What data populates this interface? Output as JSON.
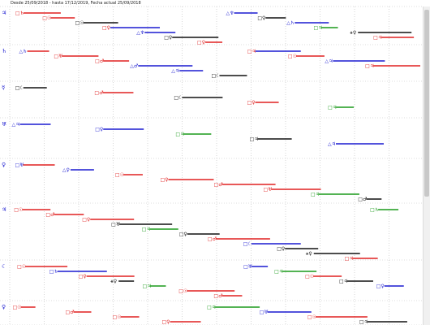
{
  "header": {
    "range_text": "Desde 25/09/2018 - hasta 17/12/2019, Fecha actual 25/09/2018"
  },
  "colors": {
    "red": "#e02020",
    "green": "#1a9a1a",
    "blue": "#1a1ad0",
    "black": "#111111",
    "grid": "#bbbbbb"
  },
  "rows": [
    {
      "label": "♃",
      "events": [
        {
          "t": "□♄",
          "c": "red",
          "b": "red"
        },
        {
          "t": "□☉",
          "c": "red",
          "b": "red"
        },
        {
          "t": "□☉",
          "c": "black",
          "b": "black"
        },
        {
          "t": "□♀",
          "c": "red",
          "b": "blue"
        },
        {
          "t": "△♆",
          "c": "blue",
          "b": "blue"
        },
        {
          "t": "□♀",
          "c": "black",
          "b": "black"
        },
        {
          "t": "□♀",
          "c": "red",
          "b": "red"
        },
        {
          "t": "△♆",
          "c": "blue",
          "b": "blue"
        },
        {
          "t": "□♀",
          "c": "black",
          "b": "black"
        },
        {
          "t": "△♄",
          "c": "blue",
          "b": "blue"
        },
        {
          "t": "□♃",
          "c": "green",
          "b": "green"
        },
        {
          "t": "⚹♀",
          "c": "black",
          "b": "black"
        },
        {
          "t": "□♃",
          "c": "red",
          "b": "red"
        }
      ]
    },
    {
      "label": "♄",
      "events": [
        {
          "t": "△♄",
          "c": "blue",
          "b": "red"
        },
        {
          "t": "□♅",
          "c": "red",
          "b": "red"
        },
        {
          "t": "□♂",
          "c": "red",
          "b": "red"
        },
        {
          "t": "△♂",
          "c": "blue",
          "b": "blue"
        },
        {
          "t": "△♃",
          "c": "blue",
          "b": "blue"
        },
        {
          "t": "□☾",
          "c": "black",
          "b": "black"
        },
        {
          "t": "□♃",
          "c": "red",
          "b": "blue"
        },
        {
          "t": "□☉",
          "c": "red",
          "b": "red"
        },
        {
          "t": "△♃",
          "c": "blue",
          "b": "blue"
        },
        {
          "t": "□♃",
          "c": "red",
          "b": "red"
        }
      ]
    },
    {
      "label": "☿",
      "events": [
        {
          "t": "□☾",
          "c": "black",
          "b": "black"
        },
        {
          "t": "□♂",
          "c": "red",
          "b": "red"
        },
        {
          "t": "□☾",
          "c": "black",
          "b": "black"
        },
        {
          "t": "□♀",
          "c": "red",
          "b": "red"
        },
        {
          "t": "□♃",
          "c": "green",
          "b": "green"
        }
      ]
    },
    {
      "label": "♅",
      "events": [
        {
          "t": "△♃",
          "c": "blue",
          "b": "blue"
        },
        {
          "t": "□♀",
          "c": "blue",
          "b": "blue"
        },
        {
          "t": "□♃",
          "c": "green",
          "b": "green"
        },
        {
          "t": "□♃",
          "c": "black",
          "b": "black"
        },
        {
          "t": "△♃",
          "c": "blue",
          "b": "blue"
        }
      ]
    },
    {
      "label": "♀",
      "events": [
        {
          "t": "□♅",
          "c": "blue",
          "b": "red"
        },
        {
          "t": "△♀",
          "c": "blue",
          "b": "blue"
        },
        {
          "t": "□☉",
          "c": "red",
          "b": "red"
        },
        {
          "t": "□♀",
          "c": "red",
          "b": "red"
        },
        {
          "t": "□♂",
          "c": "red",
          "b": "red"
        },
        {
          "t": "□♅",
          "c": "red",
          "b": "red"
        },
        {
          "t": "□♃",
          "c": "green",
          "b": "green"
        },
        {
          "t": "□♂",
          "c": "black",
          "b": "black"
        }
      ]
    },
    {
      "label": "♃",
      "events": [
        {
          "t": "□☉",
          "c": "red",
          "b": "red"
        },
        {
          "t": "□♂",
          "c": "red",
          "b": "red"
        },
        {
          "t": "□♀",
          "c": "red",
          "b": "red"
        },
        {
          "t": "□♅",
          "c": "black",
          "b": "black"
        },
        {
          "t": "□♃",
          "c": "green",
          "b": "green"
        },
        {
          "t": "□♀",
          "c": "black",
          "b": "black"
        },
        {
          "t": "□♂",
          "c": "red",
          "b": "red"
        },
        {
          "t": "□☾",
          "c": "blue",
          "b": "blue"
        },
        {
          "t": "□♀",
          "c": "black",
          "b": "black"
        },
        {
          "t": "⚹♀",
          "c": "black",
          "b": "black"
        },
        {
          "t": "□♃",
          "c": "red",
          "b": "red"
        },
        {
          "t": "□♄",
          "c": "green",
          "b": "green"
        }
      ]
    },
    {
      "label": "☾",
      "events": [
        {
          "t": "□☉",
          "c": "red",
          "b": "red"
        },
        {
          "t": "□♄",
          "c": "blue",
          "b": "blue"
        },
        {
          "t": "□♀",
          "c": "red",
          "b": "red"
        },
        {
          "t": "⚹♀",
          "c": "black",
          "b": "black"
        },
        {
          "t": "□♃",
          "c": "green",
          "b": "green"
        },
        {
          "t": "□☉",
          "c": "red",
          "b": "red"
        },
        {
          "t": "□♂",
          "c": "red",
          "b": "red"
        },
        {
          "t": "□♅",
          "c": "blue",
          "b": "blue"
        },
        {
          "t": "□♃",
          "c": "green",
          "b": "green"
        },
        {
          "t": "□☉",
          "c": "red",
          "b": "red"
        },
        {
          "t": "□♃",
          "c": "black",
          "b": "black"
        },
        {
          "t": "□♀",
          "c": "blue",
          "b": "blue"
        }
      ]
    },
    {
      "label": "♀",
      "events": [
        {
          "t": "□☉",
          "c": "red",
          "b": "red"
        },
        {
          "t": "□♂",
          "c": "red",
          "b": "red"
        },
        {
          "t": "□☉",
          "c": "red",
          "b": "red"
        },
        {
          "t": "□♀",
          "c": "red",
          "b": "red"
        },
        {
          "t": "□♃",
          "c": "green",
          "b": "green"
        },
        {
          "t": "□♅",
          "c": "blue",
          "b": "blue"
        },
        {
          "t": "□☉",
          "c": "red",
          "b": "red"
        },
        {
          "t": "□♃",
          "c": "black",
          "b": "black"
        }
      ]
    }
  ]
}
